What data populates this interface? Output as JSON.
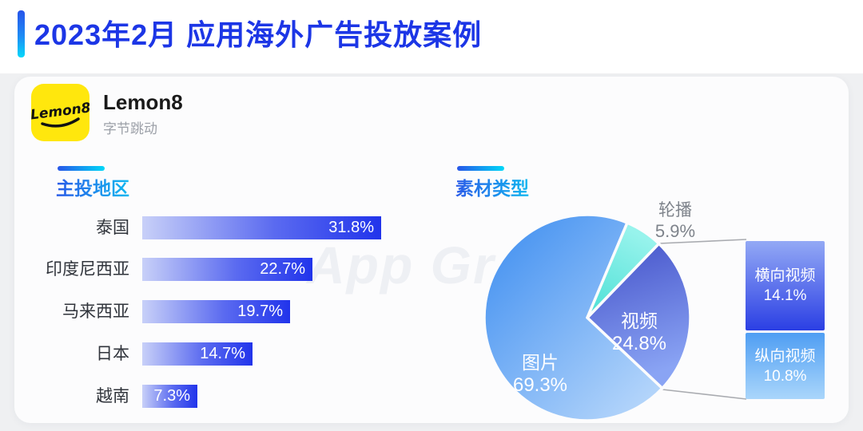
{
  "page": {
    "title": "2023年2月 应用海外广告投放案例"
  },
  "app_card": {
    "name": "Lemon8",
    "company": "字节跳动",
    "logo_text": "Lemon8"
  },
  "watermark": "App Growing",
  "colors": {
    "title_blue": "#1C36E6",
    "accent_gradient": [
      "#2754EA",
      "#06D8FA"
    ],
    "section_text_gradient": [
      "#2A5BE8",
      "#12B8F0"
    ],
    "bar_gradient": [
      "#C8D0F8",
      "#2134EB"
    ],
    "logo_yellow": "#FFE70D",
    "company_gray": "#9CA0A8",
    "outside_label_gray": "#7E838B"
  },
  "chart_data": [
    {
      "type": "bar",
      "title": "主投地区",
      "orientation": "horizontal",
      "categories": [
        "泰国",
        "印度尼西亚",
        "马来西亚",
        "日本",
        "越南"
      ],
      "values": [
        31.8,
        22.7,
        19.7,
        14.7,
        7.3
      ],
      "value_labels": [
        "31.8%",
        "22.7%",
        "19.7%",
        "14.7%",
        "7.3%"
      ],
      "xlim": [
        0,
        31.8
      ],
      "grid": false,
      "value_label_position": "inside-right"
    },
    {
      "type": "pie",
      "title": "素材类型",
      "slices": [
        {
          "label": "图片",
          "value": 69.3,
          "pct": "69.3%",
          "colors": [
            "#3B8CF0",
            "#B9D8FB"
          ],
          "label_position": "inside"
        },
        {
          "label": "视频",
          "value": 24.8,
          "pct": "24.8%",
          "colors": [
            "#4350C8",
            "#8AA4F4"
          ],
          "label_position": "inside"
        },
        {
          "label": "轮播",
          "value": 5.9,
          "pct": "5.9%",
          "colors": [
            "#4ADFD5",
            "#97F3EC"
          ],
          "label_position": "outside"
        }
      ],
      "callout_breakdown_of": "视频",
      "callout_slices": [
        {
          "label": "横向视频",
          "value": 14.1,
          "pct": "14.1%",
          "colors": [
            "#93A9F5",
            "#2B3FE4"
          ]
        },
        {
          "label": "纵向视频",
          "value": 10.8,
          "pct": "10.8%",
          "colors": [
            "#4F9EF3",
            "#AAD6FB"
          ]
        }
      ]
    }
  ]
}
